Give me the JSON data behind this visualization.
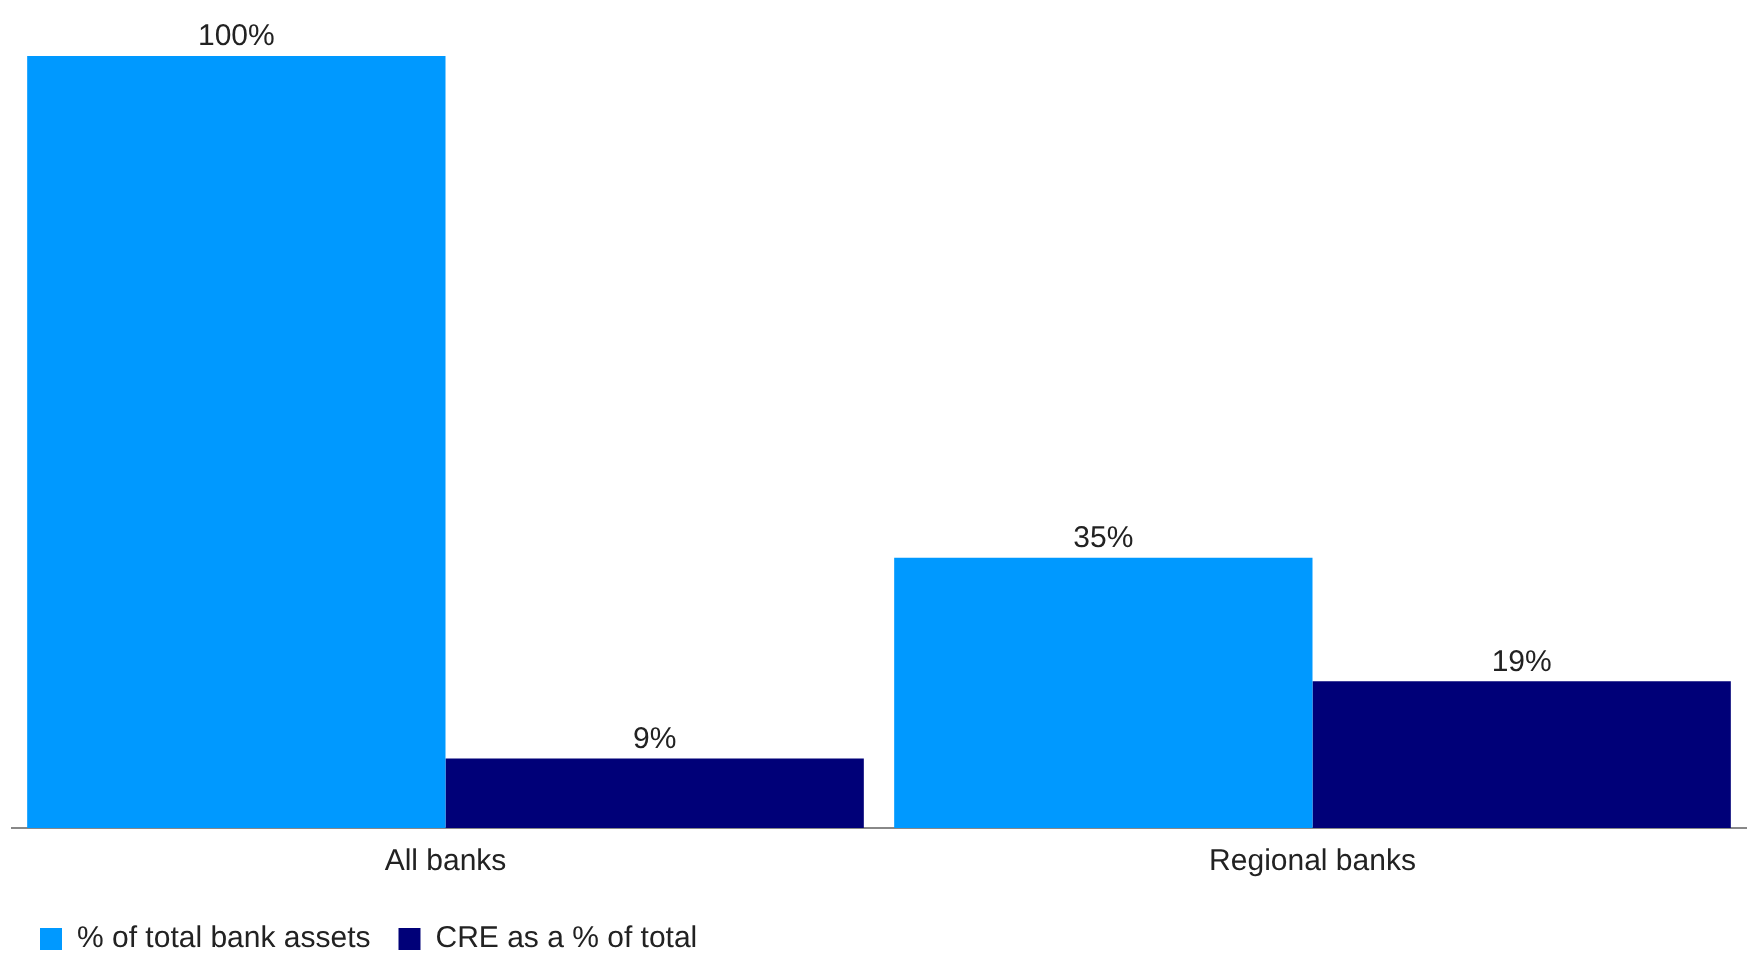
{
  "chart_data": {
    "type": "bar",
    "categories": [
      "All banks",
      "Regional banks"
    ],
    "series": [
      {
        "name": "% of total bank assets",
        "color": "#0099ff",
        "values": [
          100,
          35
        ],
        "value_labels": [
          "100%",
          "35%"
        ]
      },
      {
        "name": "CRE as a % of total",
        "color": "#000078",
        "values": [
          9,
          19
        ],
        "value_labels": [
          "9%",
          "19%"
        ]
      }
    ],
    "legend": "bottom left",
    "grid": false,
    "tick_labels": "x"
  }
}
